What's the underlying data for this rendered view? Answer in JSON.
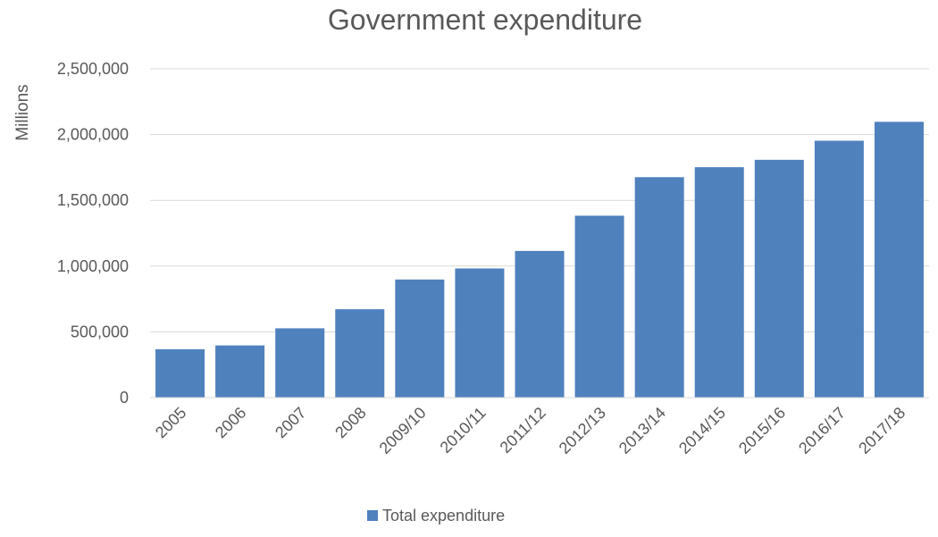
{
  "chart_data": {
    "type": "bar",
    "title": "Government expenditure",
    "xlabel": "",
    "ylabel": "Millions",
    "categories": [
      "2005",
      "2006",
      "2007",
      "2008",
      "2009/10",
      "2010/11",
      "2011/12",
      "2012/13",
      "2013/14",
      "2014/15",
      "2015/16",
      "2016/17",
      "2017/18"
    ],
    "series": [
      {
        "name": "Total expenditure",
        "values": [
          368000,
          397000,
          527000,
          672000,
          898000,
          982000,
          1115000,
          1383000,
          1676000,
          1752000,
          1808000,
          1953000,
          2097000
        ]
      }
    ],
    "ylim": [
      0,
      2500000
    ],
    "yticks": [
      "0",
      "500,000",
      "1,000,000",
      "1,500,000",
      "2,000,000",
      "2,500,000"
    ],
    "grid": true,
    "legend_position": "bottom",
    "colors": {
      "bar": "#4f81bd",
      "grid": "#d9d9d9",
      "text": "#595959"
    }
  }
}
